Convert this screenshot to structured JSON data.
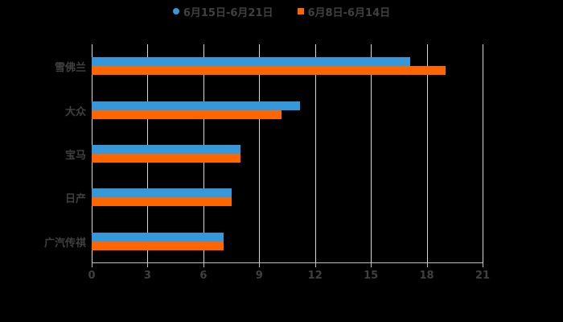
{
  "chart_data": {
    "type": "bar",
    "orientation": "horizontal",
    "title": "",
    "xlabel": "",
    "ylabel": "",
    "categories": [
      "雪佛兰",
      "大众",
      "宝马",
      "日产",
      "广汽传祺"
    ],
    "series": [
      {
        "name": "6月15日-6月21日",
        "color": "#3498db",
        "values": [
          17.1,
          11.2,
          8.0,
          7.5,
          7.1
        ]
      },
      {
        "name": "6月8日-6月14日",
        "color": "#ff6600",
        "values": [
          19.0,
          10.2,
          8.0,
          7.5,
          7.1
        ]
      }
    ],
    "xlim": [
      0,
      21
    ],
    "xticks": [
      "0",
      "3",
      "6",
      "9",
      "12",
      "15",
      "18",
      "21"
    ],
    "grid": true,
    "legend_position": "top"
  },
  "legend": {
    "series1": "6月15日-6月21日",
    "series2": "6月8日-6月14日"
  }
}
